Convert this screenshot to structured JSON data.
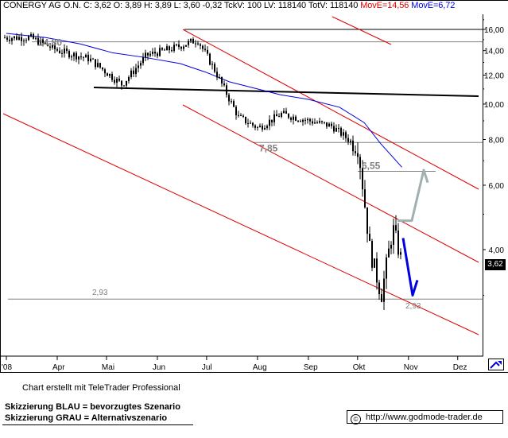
{
  "header": {
    "text": "CONERGY AG O.N. C: 3,62 O: 3,89 H: 3,89 L: 3,60 -0,32 TckV: 100 LV: 118140 TotV: 118140",
    "ma1": "MovE=14,56",
    "ma2": "MovE=6,72",
    "ma1_color": "#e00000",
    "ma2_color": "#0000e0"
  },
  "footer": {
    "credit": "Chart erstellt mit TeleTrader Professional",
    "legend_blue": "Skizzierung BLAU = bevorzugtes Szenario",
    "legend_grau": "Skizzierung GRAU = Alternativszenario",
    "website": "http://www.godmode-trader.de",
    "copyright_icon": "copyright-icon"
  },
  "chart_data": {
    "type": "candlestick",
    "x_ticks": [
      "'08",
      "Apr",
      "Mai",
      "Jun",
      "Jul",
      "Aug",
      "Sep",
      "Okt",
      "Nov",
      "Dez"
    ],
    "y_ticks": [
      "16,00",
      "14,00",
      "12,00",
      "10,00",
      "8,00",
      "6,00",
      "4,00"
    ],
    "y_scale": "log",
    "last_price": "3,62",
    "annotations": [
      "14,80",
      "7,85",
      "6,55",
      "2,93",
      "2,93"
    ],
    "price_path_dates": [
      "2008-03-15",
      "2008-04-01",
      "2008-04-20",
      "2008-05-10",
      "2008-05-25",
      "2008-06-10",
      "2008-06-25",
      "2008-07-05",
      "2008-07-20",
      "2008-08-01",
      "2008-08-15",
      "2008-09-01",
      "2008-09-15",
      "2008-10-01",
      "2008-10-08",
      "2008-10-15",
      "2008-10-22",
      "2008-10-28"
    ],
    "price_path_values": [
      15.2,
      14.0,
      13.3,
      11.3,
      13.6,
      14.2,
      15.0,
      12.5,
      9.2,
      8.6,
      9.4,
      9.0,
      8.7,
      7.6,
      4.0,
      3.0,
      4.6,
      3.62
    ],
    "moving_average_blue": [
      15.6,
      15.2,
      14.6,
      13.8,
      13.4,
      12.9,
      12.2,
      11.5,
      11.0,
      10.6,
      10.3,
      9.8,
      8.9,
      7.8,
      6.72
    ],
    "levels": [
      {
        "label": "16,00",
        "value": 16.0,
        "color": "#000000"
      },
      {
        "label": "14,80",
        "value": 14.8,
        "color": "#808080"
      },
      {
        "label": "7,85",
        "value": 7.85,
        "color": "#808080"
      },
      {
        "label": "6,55",
        "value": 6.55,
        "color": "#808080"
      },
      {
        "label": "2,93",
        "value": 2.93,
        "color": "#808080"
      }
    ],
    "scenario_blue": [
      4.3,
      3.0,
      3.3
    ],
    "scenario_grau": [
      4.8,
      6.6,
      6.1
    ],
    "colors": {
      "price": "#000000",
      "moving_average": "#0000e0",
      "trend_channel": "#e00000",
      "scenario_blue": "#0000e0",
      "scenario_grau": "#a0b0b0",
      "support_line": "#000000"
    }
  }
}
